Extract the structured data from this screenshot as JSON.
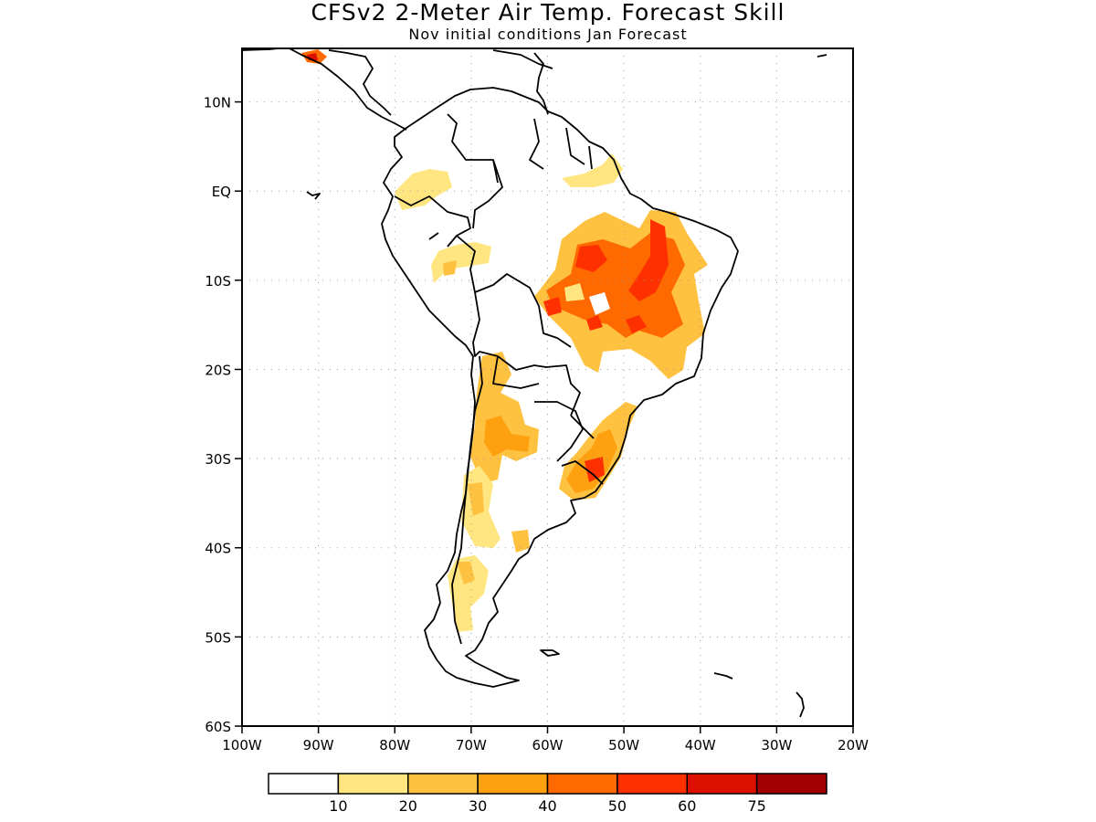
{
  "title": "CFSv2 2-Meter Air Temp. Forecast Skill",
  "subtitle": "Nov initial conditions  Jan Forecast",
  "map": {
    "lon_range": [
      -100,
      -20
    ],
    "lat_range": [
      -60,
      16
    ],
    "lat_labels": [
      "10N",
      "EQ",
      "10S",
      "20S",
      "30S",
      "40S",
      "50S",
      "60S"
    ],
    "lon_labels": [
      "100W",
      "90W",
      "80W",
      "70W",
      "60W",
      "50W",
      "40W",
      "30W",
      "20W"
    ],
    "gridlines": "dotted"
  },
  "colorbar": {
    "colors": [
      "#ffffff",
      "#ffe680",
      "#ffc240",
      "#ffa010",
      "#ff6a00",
      "#ff3000",
      "#dd1000",
      "#a00000"
    ],
    "labels": [
      "10",
      "20",
      "30",
      "40",
      "50",
      "60",
      "75"
    ]
  },
  "skill_regions": [
    {
      "name": "brazil-central",
      "level": 2
    },
    {
      "name": "brazil-central-core",
      "level": 4
    },
    {
      "name": "brazil-central-max",
      "level": 5
    },
    {
      "name": "southern-brazil-uruguay",
      "level": 3
    },
    {
      "name": "northern-argentina",
      "level": 2
    },
    {
      "name": "western-argentina-chile",
      "level": 1
    },
    {
      "name": "patagonia",
      "level": 1
    },
    {
      "name": "colombia",
      "level": 1
    },
    {
      "name": "peru",
      "level": 1
    },
    {
      "name": "central-america",
      "level": 4
    }
  ]
}
